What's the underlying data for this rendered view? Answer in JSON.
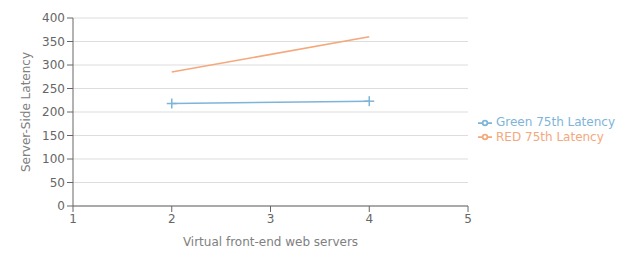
{
  "chart_data": {
    "type": "line",
    "x": [
      2,
      4
    ],
    "series": [
      {
        "name": "Green 75th Latency",
        "color": "#7EB4D9",
        "values": [
          218,
          223
        ],
        "marker": "plus"
      },
      {
        "name": "RED 75th Latency",
        "color": "#F4A87C",
        "values": [
          285,
          360
        ],
        "marker": "none"
      }
    ],
    "xlabel": "Virtual front-end web servers",
    "ylabel": "Server-Side Latency",
    "xlim": [
      1,
      5
    ],
    "xticks": [
      1,
      2,
      3,
      4,
      5
    ],
    "ylim": [
      0,
      400
    ],
    "yticks": [
      0,
      50,
      100,
      150,
      200,
      250,
      300,
      350,
      400
    ],
    "grid": "y",
    "legend": "right"
  }
}
